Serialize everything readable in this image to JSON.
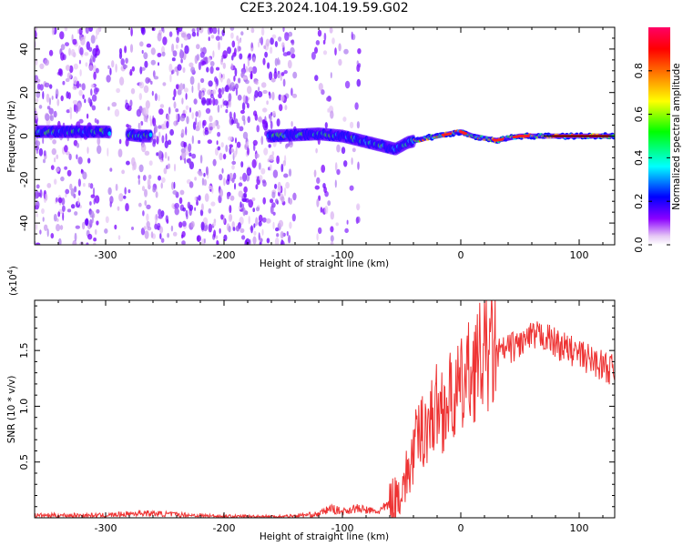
{
  "title": "C2E3.2024.104.19.59.G02",
  "chart_data": [
    {
      "type": "heatmap",
      "title": "C2E3.2024.104.19.59.G02",
      "xlabel": "Height of straight line (km)",
      "ylabel": "Frequency (Hz)",
      "xlim": [
        -360,
        130
      ],
      "ylim": [
        -50,
        50
      ],
      "xticks": [
        -300,
        -200,
        -100,
        0,
        100
      ],
      "xtick_labels": [
        "-300",
        "-200",
        "-100",
        "0",
        "100"
      ],
      "yticks": [
        -40,
        -20,
        0,
        20,
        40
      ],
      "ytick_labels": [
        "-40",
        "-20",
        "0",
        "20",
        "40"
      ],
      "colorbar": {
        "label": "Normalized spectral amplitude",
        "range": [
          0,
          1
        ],
        "ticks": [
          0.0,
          0.2,
          0.4,
          0.6,
          0.8
        ],
        "tick_labels": [
          "0.0",
          "0.2",
          "0.4",
          "0.6",
          "0.8"
        ]
      },
      "ridge": {
        "x": [
          -360,
          -300,
          -270,
          -160,
          -120,
          -100,
          -85,
          -70,
          -55,
          -45,
          -30,
          -10,
          0,
          10,
          30,
          50,
          80,
          130
        ],
        "y": [
          2,
          2,
          0,
          0,
          1,
          0,
          -2,
          -4,
          -6,
          -3,
          -1,
          1,
          2,
          0,
          -2,
          0,
          0,
          0
        ]
      }
    },
    {
      "type": "line",
      "xlabel": "Height of straight line (km)",
      "ylabel": "SNR (10 * v/v)",
      "scale_label": "(x10",
      "scale_exp": "4",
      "scale_close": ")",
      "xlim": [
        -360,
        130
      ],
      "ylim": [
        0,
        1.95
      ],
      "xticks": [
        -300,
        -200,
        -100,
        0,
        100
      ],
      "xtick_labels": [
        "-300",
        "-200",
        "-100",
        "0",
        "100"
      ],
      "yticks": [
        0.5,
        1.0,
        1.5
      ],
      "ytick_labels": [
        "0.5",
        "1.0",
        "1.5"
      ],
      "series": [
        {
          "name": "SNR",
          "color": "#ee3333",
          "x": [
            -360,
            -300,
            -270,
            -200,
            -150,
            -120,
            -110,
            -100,
            -90,
            -70,
            -55,
            -50,
            -45,
            -40,
            -35,
            -30,
            -25,
            -20,
            -15,
            -10,
            -5,
            0,
            5,
            10,
            20,
            30,
            40,
            50,
            60,
            70,
            80,
            90,
            100,
            110,
            120,
            130
          ],
          "y": [
            0.02,
            0.02,
            0.04,
            0.01,
            0.01,
            0.03,
            0.08,
            0.05,
            0.08,
            0.05,
            0.15,
            0.25,
            0.35,
            0.55,
            0.7,
            0.8,
            0.85,
            0.95,
            0.95,
            1.0,
            1.05,
            1.1,
            1.2,
            1.3,
            1.4,
            1.45,
            1.5,
            1.55,
            1.6,
            1.62,
            1.55,
            1.5,
            1.45,
            1.4,
            1.35,
            1.3
          ]
        }
      ]
    }
  ]
}
